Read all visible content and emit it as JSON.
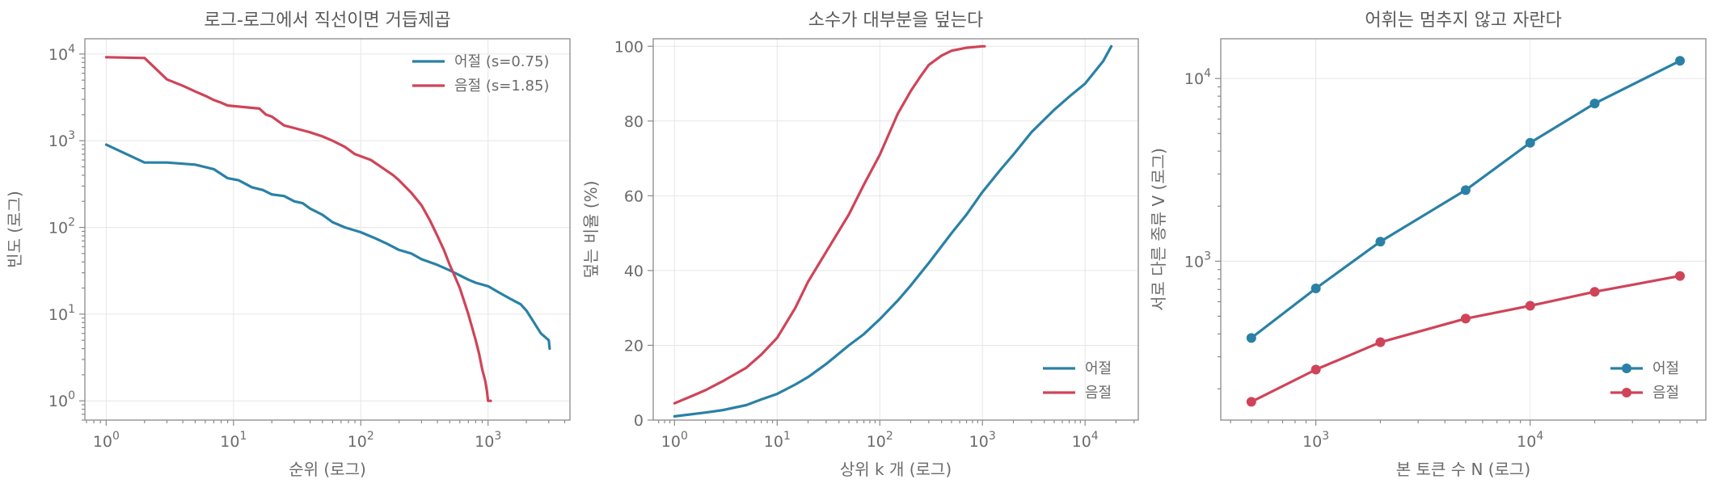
{
  "colors": {
    "eojeol": "#2a81a5",
    "eumjeol": "#cf4459",
    "grid": "#e6e6e6",
    "text": "#6b6b6b"
  },
  "chart_data": [
    {
      "type": "line",
      "title": "로그-로그에서 직선이면 거듭제곱",
      "xlabel": "순위 (로그)",
      "ylabel": "빈도 (로그)",
      "xscale": "log",
      "yscale": "log",
      "xlim": [
        0.68,
        4400
      ],
      "ylim": [
        0.6,
        15000
      ],
      "xticks": [
        {
          "v": 1,
          "base": "10",
          "exp": "0"
        },
        {
          "v": 10,
          "base": "10",
          "exp": "1"
        },
        {
          "v": 100,
          "base": "10",
          "exp": "2"
        },
        {
          "v": 1000,
          "base": "10",
          "exp": "3"
        }
      ],
      "yticks": [
        {
          "v": 1,
          "base": "10",
          "exp": "0"
        },
        {
          "v": 10,
          "base": "10",
          "exp": "1"
        },
        {
          "v": 100,
          "base": "10",
          "exp": "2"
        },
        {
          "v": 1000,
          "base": "10",
          "exp": "3"
        },
        {
          "v": 10000,
          "base": "10",
          "exp": "4"
        }
      ],
      "legend": "top-right",
      "grid": true,
      "series": [
        {
          "name": "어절 (s=0.75)",
          "color": "#2a81a5",
          "markers": false,
          "points": [
            [
              1,
              900
            ],
            [
              2,
              560
            ],
            [
              3,
              560
            ],
            [
              5,
              530
            ],
            [
              7,
              470
            ],
            [
              9,
              370
            ],
            [
              11,
              350
            ],
            [
              14,
              290
            ],
            [
              17,
              270
            ],
            [
              20,
              240
            ],
            [
              25,
              230
            ],
            [
              30,
              200
            ],
            [
              35,
              190
            ],
            [
              40,
              165
            ],
            [
              50,
              140
            ],
            [
              60,
              115
            ],
            [
              75,
              100
            ],
            [
              100,
              88
            ],
            [
              130,
              75
            ],
            [
              160,
              65
            ],
            [
              200,
              55
            ],
            [
              250,
              50
            ],
            [
              300,
              43
            ],
            [
              400,
              37
            ],
            [
              500,
              32
            ],
            [
              600,
              28
            ],
            [
              700,
              25
            ],
            [
              800,
              23
            ],
            [
              1000,
              21
            ],
            [
              1200,
              18
            ],
            [
              1500,
              15
            ],
            [
              1800,
              13
            ],
            [
              2000,
              11
            ],
            [
              2300,
              8
            ],
            [
              2600,
              6
            ],
            [
              3000,
              5
            ],
            [
              3050,
              4
            ]
          ]
        },
        {
          "name": "음절 (s=1.85)",
          "color": "#cf4459",
          "markers": false,
          "points": [
            [
              1,
              9200
            ],
            [
              2,
              9000
            ],
            [
              3,
              5100
            ],
            [
              4,
              4300
            ],
            [
              5,
              3700
            ],
            [
              6,
              3300
            ],
            [
              7,
              2950
            ],
            [
              8,
              2750
            ],
            [
              9,
              2550
            ],
            [
              12,
              2450
            ],
            [
              16,
              2350
            ],
            [
              18,
              2000
            ],
            [
              20,
              1900
            ],
            [
              25,
              1500
            ],
            [
              30,
              1400
            ],
            [
              40,
              1250
            ],
            [
              50,
              1120
            ],
            [
              60,
              1000
            ],
            [
              75,
              850
            ],
            [
              90,
              700
            ],
            [
              120,
              600
            ],
            [
              150,
              480
            ],
            [
              180,
              400
            ],
            [
              200,
              350
            ],
            [
              250,
              250
            ],
            [
              300,
              180
            ],
            [
              350,
              120
            ],
            [
              400,
              80
            ],
            [
              450,
              55
            ],
            [
              500,
              37
            ],
            [
              550,
              27
            ],
            [
              600,
              20
            ],
            [
              650,
              14
            ],
            [
              700,
              10
            ],
            [
              750,
              7
            ],
            [
              800,
              5
            ],
            [
              850,
              3.5
            ],
            [
              900,
              2.3
            ],
            [
              950,
              1.7
            ],
            [
              980,
              1.3
            ],
            [
              1000,
              1
            ],
            [
              1050,
              1
            ]
          ]
        }
      ]
    },
    {
      "type": "line",
      "title": "소수가 대부분을 덮는다",
      "xlabel": "상위 k 개 (로그)",
      "ylabel": "덮는 비율 (%)",
      "xscale": "log",
      "yscale": "linear",
      "xlim": [
        0.62,
        33000
      ],
      "ylim": [
        0,
        102
      ],
      "xticks": [
        {
          "v": 1,
          "base": "10",
          "exp": "0"
        },
        {
          "v": 10,
          "base": "10",
          "exp": "1"
        },
        {
          "v": 100,
          "base": "10",
          "exp": "2"
        },
        {
          "v": 1000,
          "base": "10",
          "exp": "3"
        },
        {
          "v": 10000,
          "base": "10",
          "exp": "4"
        }
      ],
      "yticks": [
        {
          "v": 0,
          "label": "0"
        },
        {
          "v": 20,
          "label": "20"
        },
        {
          "v": 40,
          "label": "40"
        },
        {
          "v": 60,
          "label": "60"
        },
        {
          "v": 80,
          "label": "80"
        },
        {
          "v": 100,
          "label": "100"
        }
      ],
      "legend": "bottom-right",
      "grid": true,
      "series": [
        {
          "name": "어절",
          "color": "#2a81a5",
          "markers": false,
          "points": [
            [
              1,
              1
            ],
            [
              2,
              2
            ],
            [
              3,
              2.7
            ],
            [
              5,
              4
            ],
            [
              7,
              5.5
            ],
            [
              10,
              7
            ],
            [
              15,
              9.5
            ],
            [
              20,
              11.5
            ],
            [
              30,
              15
            ],
            [
              50,
              20
            ],
            [
              70,
              23
            ],
            [
              100,
              27
            ],
            [
              150,
              32
            ],
            [
              200,
              36
            ],
            [
              300,
              42
            ],
            [
              500,
              50
            ],
            [
              700,
              55
            ],
            [
              1000,
              61
            ],
            [
              1500,
              67
            ],
            [
              2000,
              71
            ],
            [
              3000,
              77
            ],
            [
              5000,
              83
            ],
            [
              7000,
              86.5
            ],
            [
              10000,
              90
            ],
            [
              15000,
              96
            ],
            [
              18000,
              100
            ]
          ]
        },
        {
          "name": "음절",
          "color": "#cf4459",
          "markers": false,
          "points": [
            [
              1,
              4.5
            ],
            [
              1.5,
              6.5
            ],
            [
              2,
              8
            ],
            [
              3,
              10.5
            ],
            [
              5,
              14
            ],
            [
              7,
              17.5
            ],
            [
              10,
              22
            ],
            [
              15,
              30
            ],
            [
              20,
              37
            ],
            [
              30,
              45
            ],
            [
              50,
              55
            ],
            [
              70,
              63
            ],
            [
              100,
              71
            ],
            [
              150,
              82
            ],
            [
              200,
              88
            ],
            [
              250,
              92
            ],
            [
              300,
              95
            ],
            [
              400,
              97.5
            ],
            [
              500,
              98.8
            ],
            [
              700,
              99.6
            ],
            [
              1000,
              100
            ],
            [
              1050,
              100
            ]
          ]
        }
      ]
    },
    {
      "type": "line",
      "title": "어휘는 멈추지 않고 자란다",
      "xlabel": "본 토큰 수 N (로그)",
      "ylabel": "서로 다른 종류 V (로그)",
      "xscale": "log",
      "yscale": "log",
      "xlim": [
        360,
        66000
      ],
      "ylim": [
        135,
        16500
      ],
      "xticks": [
        {
          "v": 1000,
          "base": "10",
          "exp": "3"
        },
        {
          "v": 10000,
          "base": "10",
          "exp": "4"
        }
      ],
      "yticks": [
        {
          "v": 1000,
          "base": "10",
          "exp": "3"
        },
        {
          "v": 10000,
          "base": "10",
          "exp": "4"
        }
      ],
      "legend": "bottom-right",
      "grid": true,
      "series": [
        {
          "name": "어절",
          "color": "#2a81a5",
          "markers": true,
          "points": [
            [
              500,
              380
            ],
            [
              1000,
              710
            ],
            [
              2000,
              1280
            ],
            [
              5000,
              2450
            ],
            [
              10000,
              4450
            ],
            [
              20000,
              7300
            ],
            [
              50000,
              12500
            ]
          ]
        },
        {
          "name": "음절",
          "color": "#cf4459",
          "markers": true,
          "points": [
            [
              500,
              170
            ],
            [
              1000,
              255
            ],
            [
              2000,
              360
            ],
            [
              5000,
              485
            ],
            [
              10000,
              570
            ],
            [
              20000,
              680
            ],
            [
              50000,
              830
            ]
          ]
        }
      ]
    }
  ]
}
